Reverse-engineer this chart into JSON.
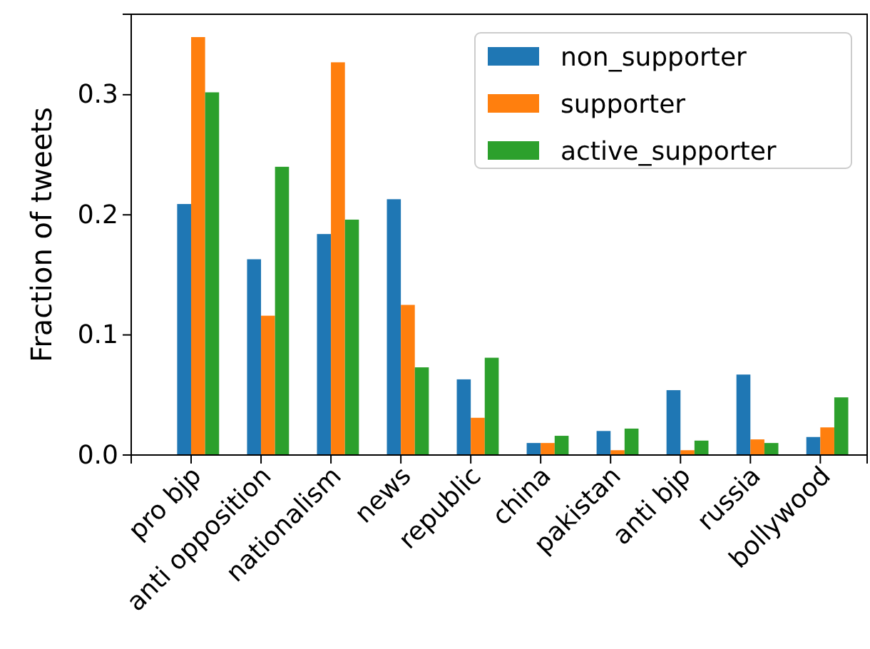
{
  "chart_data": {
    "type": "bar",
    "ylabel": "Fraction of tweets",
    "categories": [
      "pro bjp",
      "anti opposition",
      "nationalism",
      "news",
      "republic",
      "china",
      "pakistan",
      "anti bjp",
      "russia",
      "bollywood"
    ],
    "series": [
      {
        "name": "non_supporter",
        "color": "#1f77b4",
        "values": [
          0.209,
          0.163,
          0.184,
          0.213,
          0.063,
          0.01,
          0.02,
          0.054,
          0.067,
          0.015
        ]
      },
      {
        "name": "supporter",
        "color": "#ff7f0e",
        "values": [
          0.348,
          0.116,
          0.327,
          0.125,
          0.031,
          0.01,
          0.004,
          0.004,
          0.013,
          0.023
        ]
      },
      {
        "name": "active_supporter",
        "color": "#2ca02c",
        "values": [
          0.302,
          0.24,
          0.196,
          0.073,
          0.081,
          0.016,
          0.022,
          0.012,
          0.01,
          0.048
        ]
      }
    ],
    "ylim": [
      0,
      0.367
    ],
    "yticks": [
      {
        "value": 0,
        "label": "0.0"
      },
      {
        "value": 0.1,
        "label": "0.1"
      },
      {
        "value": 0.2,
        "label": "0.2"
      },
      {
        "value": 0.3,
        "label": "0.3"
      }
    ],
    "legend": "top right",
    "grid": false
  }
}
